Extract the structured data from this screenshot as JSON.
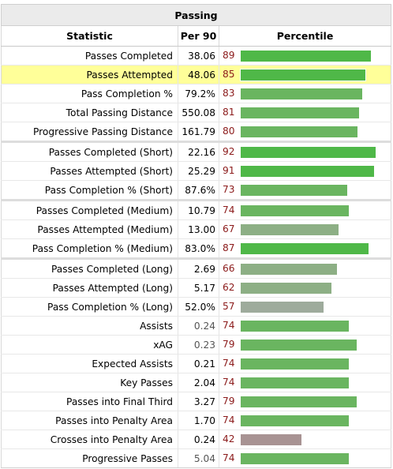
{
  "table": {
    "title": "Passing",
    "columns": {
      "statistic": "Statistic",
      "per90": "Per 90",
      "percentile": "Percentile"
    },
    "colors": {
      "high": "#4fb848",
      "mid": "#6ab560",
      "low": "#8daf85",
      "vlow": "#9eab9c",
      "poor": "#a89393"
    },
    "rows": [
      {
        "stat": "Passes Completed",
        "per90": "38.06",
        "percentile": "89",
        "fill": 0.89
      },
      {
        "stat": "Passes Attempted",
        "per90": "48.06",
        "percentile": "85",
        "fill": 0.85,
        "highlight": true
      },
      {
        "stat": "Pass Completion %",
        "per90": "79.2%",
        "percentile": "83",
        "fill": 0.83
      },
      {
        "stat": "Total Passing Distance",
        "per90": "550.08",
        "percentile": "81",
        "fill": 0.81
      },
      {
        "stat": "Progressive Passing Distance",
        "per90": "161.79",
        "percentile": "80",
        "fill": 0.8
      },
      {
        "stat": "Passes Completed (Short)",
        "per90": "22.16",
        "percentile": "92",
        "fill": 0.92,
        "sep": true
      },
      {
        "stat": "Passes Attempted (Short)",
        "per90": "25.29",
        "percentile": "91",
        "fill": 0.91
      },
      {
        "stat": "Pass Completion % (Short)",
        "per90": "87.6%",
        "percentile": "73",
        "fill": 0.73
      },
      {
        "stat": "Passes Completed (Medium)",
        "per90": "10.79",
        "percentile": "74",
        "fill": 0.74,
        "sep": true
      },
      {
        "stat": "Passes Attempted (Medium)",
        "per90": "13.00",
        "percentile": "67",
        "fill": 0.67
      },
      {
        "stat": "Pass Completion % (Medium)",
        "per90": "83.0%",
        "percentile": "87",
        "fill": 0.87
      },
      {
        "stat": "Passes Completed (Long)",
        "per90": "2.69",
        "percentile": "66",
        "fill": 0.66,
        "sep": true
      },
      {
        "stat": "Passes Attempted (Long)",
        "per90": "5.17",
        "percentile": "62",
        "fill": 0.62
      },
      {
        "stat": "Pass Completion % (Long)",
        "per90": "52.0%",
        "percentile": "57",
        "fill": 0.57
      },
      {
        "stat": "Assists",
        "per90": "0.24",
        "percentile": "74",
        "fill": 0.74,
        "dim": true
      },
      {
        "stat": "xAG",
        "per90": "0.23",
        "percentile": "79",
        "fill": 0.79,
        "dim": true
      },
      {
        "stat": "Expected Assists",
        "per90": "0.21",
        "percentile": "74",
        "fill": 0.74
      },
      {
        "stat": "Key Passes",
        "per90": "2.04",
        "percentile": "74",
        "fill": 0.74
      },
      {
        "stat": "Passes into Final Third",
        "per90": "3.27",
        "percentile": "79",
        "fill": 0.79
      },
      {
        "stat": "Passes into Penalty Area",
        "per90": "1.70",
        "percentile": "74",
        "fill": 0.74
      },
      {
        "stat": "Crosses into Penalty Area",
        "per90": "0.24",
        "percentile": "42",
        "fill": 0.42
      },
      {
        "stat": "Progressive Passes",
        "per90": "5.04",
        "percentile": "74",
        "fill": 0.74,
        "dim": true
      }
    ]
  }
}
